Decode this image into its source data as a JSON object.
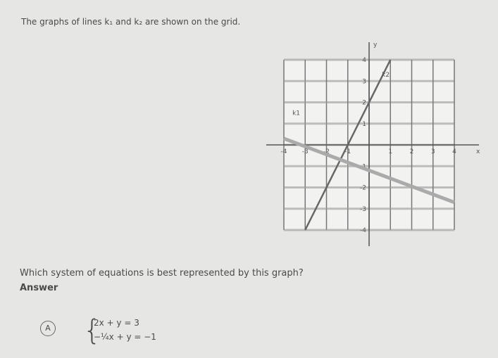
{
  "question": "The graphs of lines k₁ and k₂ are shown on the grid.",
  "graph": {
    "x_label": "x",
    "y_label": "y",
    "line_labels": [
      "k1",
      "k2"
    ],
    "x_ticks": [
      -4,
      -3,
      -2,
      -1,
      1,
      2,
      3,
      4
    ],
    "y_ticks": [
      4,
      3,
      2,
      1,
      -1,
      -2,
      -3,
      -4
    ]
  },
  "prompt": "Which system of equations is best represented by this graph?",
  "answer_label": "Answer",
  "options": [
    {
      "letter": "A",
      "equations": [
        "2x + y = 3",
        "−¼x + y = −1"
      ]
    }
  ]
}
